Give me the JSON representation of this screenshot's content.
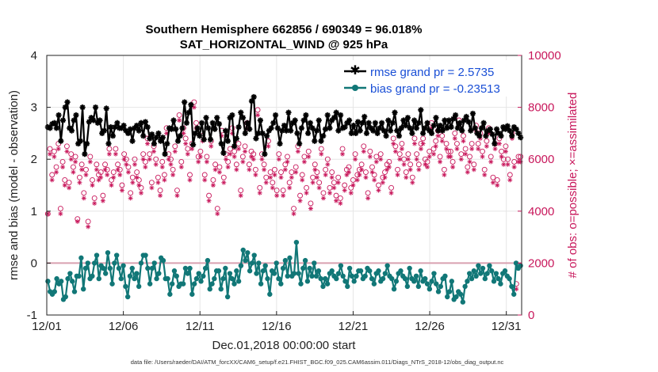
{
  "chart_data": {
    "type": "line",
    "title": "Southern Hemisphere 662856 / 690349 = 96.018%",
    "subtitle": "SAT_HORIZONTAL_WIND @ 925 hPa",
    "xlabel": "Dec.01,2018 00:00:00 start",
    "ylabel": "rmse and bias (model - observation)",
    "ylabel_right": "# of obs: o=possible; ×=assimilated",
    "footnote": "data file: /Users/raeder/DAI/ATM_forcXX/CAM6_setup/f.e21.FHIST_BGC.f09_025.CAM6assim.011/Diags_NTrS_2018-12/obs_diag_output.nc",
    "x_ticks": [
      "12/01",
      "12/06",
      "12/11",
      "12/16",
      "12/21",
      "12/26",
      "12/31"
    ],
    "x_tick_days": [
      0,
      5,
      10,
      15,
      20,
      25,
      30
    ],
    "xlim": [
      0,
      31
    ],
    "ylim": [
      -1,
      4
    ],
    "y_ticks": [
      "-1",
      "0",
      "1",
      "2",
      "3",
      "4"
    ],
    "ylim_right": [
      0,
      10000
    ],
    "y_ticks_right": [
      "0",
      "2000",
      "4000",
      "6000",
      "8000",
      "10000"
    ],
    "legend": {
      "position": "top-right",
      "entries": [
        "rmse grand pr = 2.5735",
        "bias grand pr = -0.23513"
      ]
    },
    "series": [
      {
        "name": "rmse grand pr = 2.5735",
        "color": "#000000",
        "axis": "left",
        "marker": "asterisk",
        "values": [
          2.62,
          2.6,
          2.68,
          2.7,
          2.6,
          2.85,
          2.35,
          2.75,
          3.0,
          3.1,
          2.6,
          2.55,
          2.75,
          2.85,
          2.3,
          2.35,
          3.0,
          2.1,
          2.3,
          2.72,
          2.8,
          2.75,
          3.0,
          2.7,
          2.75,
          2.5,
          2.55,
          2.98,
          2.3,
          2.62,
          2.45,
          2.62,
          2.7,
          2.6,
          2.6,
          2.65,
          2.55,
          2.5,
          2.58,
          2.35,
          2.6,
          2.65,
          2.55,
          2.7,
          2.45,
          2.72,
          2.62,
          2.4,
          2.48,
          2.3,
          2.42,
          2.5,
          2.35,
          2.42,
          2.1,
          2.3,
          2.6,
          2.58,
          2.75,
          2.58,
          2.35,
          2.45,
          2.6,
          3.1,
          2.7,
          2.9,
          3.05,
          2.28,
          2.5,
          2.6,
          2.45,
          2.7,
          2.38,
          2.8,
          2.6,
          2.38,
          2.7,
          2.58,
          2.8,
          2.68,
          2.3,
          2.12,
          2.55,
          2.35,
          2.8,
          2.85,
          2.25,
          2.4,
          2.62,
          2.9,
          2.8,
          2.5,
          2.7,
          2.58,
          3.12,
          3.2,
          2.4,
          2.5,
          2.75,
          2.5,
          2.1,
          2.45,
          2.55,
          2.6,
          2.7,
          2.85,
          2.6,
          2.3,
          2.55,
          2.65,
          2.55,
          2.9,
          2.55,
          2.7,
          2.75,
          2.5,
          2.3,
          2.6,
          2.75,
          2.85,
          2.5,
          2.7,
          2.6,
          2.35,
          2.55,
          2.75,
          2.35,
          2.45,
          2.58,
          2.85,
          2.6,
          2.75,
          2.8,
          2.9,
          2.55,
          2.85,
          2.6,
          2.62,
          2.7,
          2.75,
          2.5,
          2.65,
          2.5,
          2.72,
          2.55,
          2.7,
          2.82,
          2.5,
          2.7,
          2.6,
          2.55,
          2.7,
          2.5,
          2.6,
          2.7,
          2.55,
          2.45,
          2.75,
          2.55,
          2.7,
          2.9,
          2.55,
          2.45,
          2.6,
          2.75,
          2.65,
          2.8,
          2.6,
          2.5,
          2.75,
          2.6,
          2.7,
          2.95,
          2.5,
          2.6,
          2.7,
          2.55,
          2.5,
          2.65,
          2.8,
          2.55,
          2.65,
          2.55,
          2.75,
          2.6,
          2.75,
          2.62,
          2.78,
          2.85,
          2.6,
          2.7,
          2.55,
          2.75,
          2.82,
          2.72,
          2.55,
          2.88,
          2.6,
          2.5,
          2.45,
          2.6,
          2.7,
          2.45,
          2.55,
          2.58,
          2.48,
          2.3,
          2.58,
          2.5,
          2.45,
          2.62,
          2.58,
          2.64,
          2.55,
          2.45,
          2.62,
          2.58,
          2.5,
          2.42
        ]
      },
      {
        "name": "bias grand pr = -0.23513",
        "color": "#117777",
        "axis": "left",
        "marker": "dot",
        "values": [
          -0.35,
          -0.55,
          -0.6,
          -0.55,
          -0.3,
          -0.4,
          -0.35,
          -0.7,
          -0.65,
          -0.3,
          -0.2,
          -0.35,
          -0.55,
          -0.25,
          -0.25,
          0.1,
          -0.5,
          -0.1,
          0.0,
          -0.3,
          -0.25,
          0.0,
          0.15,
          -0.3,
          -0.05,
          -0.1,
          -0.2,
          0.2,
          -0.1,
          -0.4,
          0.0,
          0.15,
          -0.1,
          -0.3,
          -0.05,
          -0.45,
          -0.65,
          -0.25,
          -0.1,
          -0.3,
          -0.2,
          -0.45,
          0.0,
          0.15,
          0.15,
          -0.1,
          -0.4,
          -0.1,
          0.0,
          -0.3,
          -0.2,
          0.1,
          0.05,
          -0.3,
          -0.3,
          -0.6,
          -0.4,
          -0.15,
          -0.25,
          -0.45,
          -0.4,
          -0.4,
          -0.1,
          -0.2,
          -0.1,
          -0.6,
          -0.4,
          -0.3,
          -0.2,
          -0.35,
          -0.25,
          -0.1,
          0.05,
          -0.5,
          -0.4,
          -0.3,
          -0.15,
          -0.15,
          -0.5,
          -0.3,
          -0.1,
          -0.65,
          -0.2,
          -0.3,
          -0.4,
          -0.15,
          -0.35,
          -0.05,
          0.25,
          0.05,
          0.2,
          -0.15,
          0.0,
          0.15,
          -0.2,
          0.0,
          -0.4,
          -0.15,
          -0.05,
          -0.3,
          -0.6,
          -0.15,
          -0.2,
          0.0,
          -0.3,
          -0.4,
          -0.1,
          0.05,
          -0.25,
          0.1,
          -0.25,
          -0.2,
          0.4,
          -0.2,
          -0.4,
          -0.1,
          0.05,
          -0.35,
          -0.1,
          -0.25,
          0.0,
          -0.25,
          -0.15,
          -0.3,
          -0.45,
          -0.3,
          -0.4,
          -0.2,
          -0.15,
          -0.25,
          -0.3,
          -0.2,
          -0.05,
          -0.25,
          -0.35,
          -0.45,
          -0.1,
          -0.25,
          -0.35,
          -0.25,
          -0.15,
          -0.15,
          -0.3,
          -0.25,
          -0.1,
          -0.15,
          -0.3,
          -0.4,
          -0.2,
          -0.15,
          -0.35,
          -0.3,
          -0.2,
          -0.05,
          -0.25,
          -0.3,
          -0.5,
          -0.35,
          -0.2,
          -0.15,
          -0.25,
          -0.3,
          -0.45,
          -0.1,
          -0.3,
          -0.35,
          -0.25,
          -0.45,
          -0.15,
          -0.35,
          -0.3,
          -0.4,
          -0.5,
          -0.35,
          -0.2,
          -0.4,
          -0.55,
          -0.45,
          -0.3,
          -0.25,
          -0.65,
          -0.55,
          -0.35,
          -0.7,
          -0.65,
          -0.55,
          -0.6,
          -0.75,
          -0.45,
          -0.35,
          -0.2,
          -0.3,
          -0.15,
          -0.25,
          -0.05,
          -0.2,
          -0.1,
          -0.3,
          -0.2,
          -0.05,
          -0.15,
          -0.35,
          -0.2,
          -0.3,
          -0.4,
          -0.2,
          -0.15,
          -0.25,
          -0.3,
          -0.45,
          -0.6,
          0.0,
          -0.1,
          -0.05
        ]
      },
      {
        "name": "possible",
        "color": "#c8175b",
        "axis": "right",
        "marker": "circle",
        "values": [
          3900,
          6400,
          5400,
          6300,
          5700,
          6600,
          4100,
          5900,
          5200,
          6500,
          5100,
          6200,
          5700,
          6100,
          3700,
          5300,
          5800,
          4700,
          5600,
          3600,
          6100,
          5200,
          4500,
          5800,
          5400,
          5500,
          4600,
          5800,
          5600,
          6400,
          5200,
          5500,
          6400,
          5800,
          5600,
          5000,
          6200,
          6000,
          5700,
          4700,
          5300,
          6000,
          5500,
          5200,
          4900,
          6200,
          5900,
          6800,
          6200,
          5100,
          6500,
          6000,
          5300,
          4800,
          5900,
          5400,
          7200,
          6200,
          6000,
          5600,
          6500,
          4800,
          7700,
          5900,
          7200,
          6800,
          6400,
          5400,
          6600,
          8200,
          7400,
          6100,
          6300,
          6900,
          5400,
          6100,
          4600,
          6700,
          5200,
          5800,
          4100,
          5700,
          7100,
          5300,
          6200,
          5900,
          6400,
          7200,
          6300,
          5800,
          6600,
          4800,
          6100,
          6500,
          7400,
          5800,
          6300,
          6200,
          5600,
          7900,
          4900,
          6200,
          5800,
          5300,
          6700,
          5500,
          5100,
          5600,
          4800,
          6200,
          5500,
          4800,
          5800,
          6100,
          5100,
          5500,
          4100,
          5700,
          6500,
          4600,
          5400,
          6100,
          4900,
          6300,
          4300,
          5300,
          5800,
          5500,
          5100,
          6400,
          4700,
          5600,
          6000,
          4900,
          5500,
          5100,
          4600,
          5300,
          4500,
          6400,
          5000,
          5600,
          5700,
          4900,
          5200,
          6200,
          5400,
          5600,
          5800,
          6500,
          5500,
          4700,
          6300,
          5700,
          5400,
          6100,
          5000,
          6200,
          5300,
          5500,
          5800,
          5900,
          4900,
          6800,
          6500,
          5600,
          6200,
          6600,
          6000,
          5500,
          6200,
          5800,
          5300,
          6800,
          6200,
          5800,
          6600,
          6800,
          6000,
          5900,
          6300,
          7400,
          6400,
          6700,
          7100,
          6100,
          6900,
          5600,
          6600,
          6300,
          6300,
          5900,
          7000,
          6600,
          7500,
          6200,
          6900,
          6400,
          5700,
          6100,
          6600,
          5800,
          7300,
          6600,
          7000,
          6300,
          5600,
          6700,
          7200,
          6100,
          5300,
          6600,
          5200,
          6800,
          6300,
          6000,
          6500,
          6000,
          5400,
          7000,
          5900,
          1200,
          6100,
          6100
        ]
      },
      {
        "name": "assimilated",
        "color": "#c8175b",
        "axis": "right",
        "marker": "asterisk",
        "values": [
          3900,
          6200,
          5200,
          6100,
          5500,
          6400,
          3900,
          5700,
          5000,
          6300,
          4900,
          6000,
          5500,
          5900,
          3600,
          5100,
          5600,
          4500,
          5400,
          3400,
          5900,
          5000,
          4300,
          5600,
          5200,
          5300,
          4400,
          5600,
          5400,
          6200,
          5000,
          5300,
          6200,
          5600,
          5400,
          4800,
          6000,
          5800,
          5500,
          4500,
          5100,
          5800,
          5300,
          5000,
          4700,
          6000,
          5700,
          6600,
          6000,
          4900,
          6300,
          5800,
          5100,
          4600,
          5700,
          5200,
          7000,
          6000,
          5800,
          5400,
          6300,
          4600,
          7500,
          5700,
          7000,
          6600,
          6200,
          5200,
          6400,
          8000,
          7200,
          5900,
          6100,
          6700,
          5200,
          5900,
          4400,
          6500,
          5000,
          5600,
          3900,
          5500,
          6900,
          5100,
          6000,
          5700,
          6200,
          7000,
          6100,
          5600,
          6400,
          4600,
          5900,
          6300,
          7200,
          5600,
          6100,
          6000,
          5400,
          7700,
          4700,
          6000,
          5600,
          5100,
          6500,
          5300,
          4900,
          5400,
          4600,
          6000,
          5300,
          4600,
          5600,
          5900,
          4900,
          5300,
          3900,
          5500,
          6300,
          4400,
          5200,
          5900,
          4700,
          6100,
          4100,
          5100,
          5600,
          5300,
          4900,
          6200,
          4500,
          5400,
          5800,
          4700,
          5300,
          4900,
          4400,
          5100,
          4300,
          6200,
          4800,
          5400,
          5500,
          4700,
          5000,
          6000,
          5200,
          5400,
          5600,
          6300,
          5300,
          4500,
          6100,
          5500,
          5200,
          5900,
          4800,
          6000,
          5100,
          5300,
          5600,
          5700,
          4700,
          6600,
          6300,
          5400,
          6000,
          6400,
          5800,
          5300,
          6000,
          5600,
          5100,
          6600,
          6000,
          5600,
          6400,
          6600,
          5800,
          5700,
          6100,
          7200,
          6200,
          6500,
          6900,
          5900,
          6700,
          5400,
          6400,
          6100,
          6100,
          5700,
          6800,
          6400,
          7300,
          6000,
          6700,
          6200,
          5500,
          5900,
          6400,
          5600,
          7100,
          6400,
          6800,
          6100,
          5400,
          6500,
          7000,
          5900,
          5100,
          6400,
          5000,
          6600,
          6100,
          5800,
          6300,
          5800,
          5200,
          6800,
          5700,
          1000,
          5900,
          5900
        ]
      }
    ]
  }
}
